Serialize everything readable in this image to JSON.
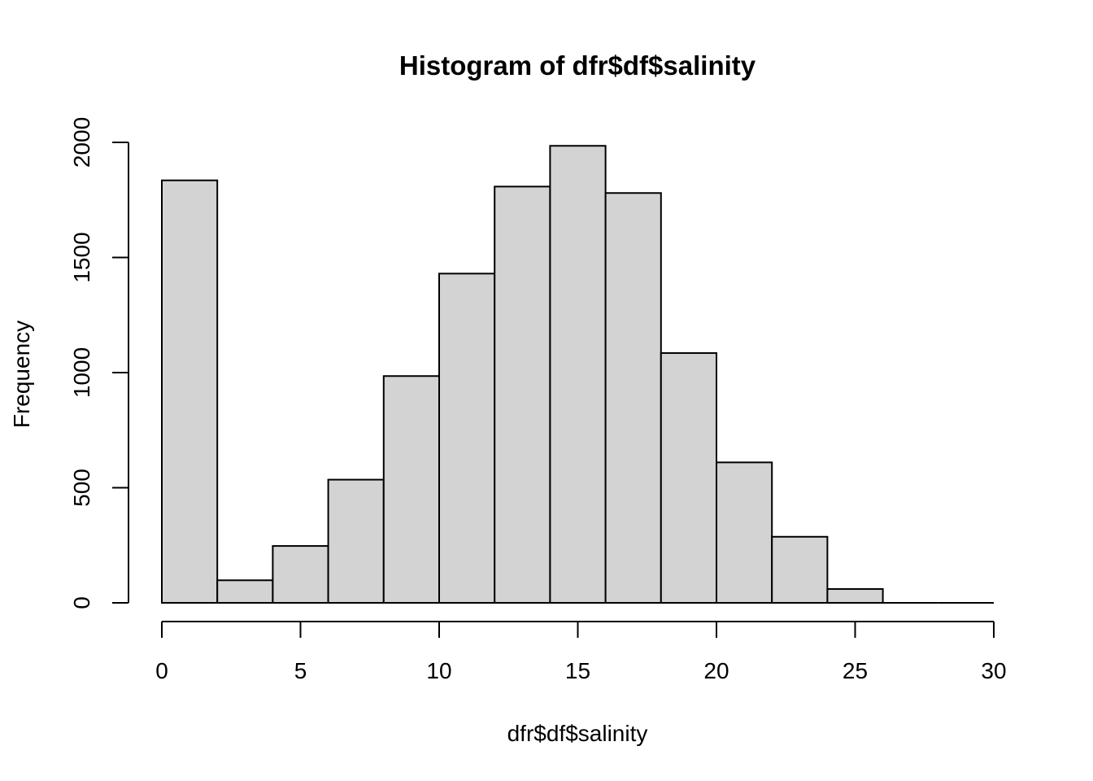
{
  "chart_data": {
    "type": "bar",
    "title": "Histogram of dfr$df$salinity",
    "xlabel": "dfr$df$salinity",
    "ylabel": "Frequency",
    "bins": [
      {
        "from": 0,
        "to": 2,
        "count": 1835
      },
      {
        "from": 2,
        "to": 4,
        "count": 98
      },
      {
        "from": 4,
        "to": 6,
        "count": 247
      },
      {
        "from": 6,
        "to": 8,
        "count": 535
      },
      {
        "from": 8,
        "to": 10,
        "count": 985
      },
      {
        "from": 10,
        "to": 12,
        "count": 1430
      },
      {
        "from": 12,
        "to": 14,
        "count": 1808
      },
      {
        "from": 14,
        "to": 16,
        "count": 1985
      },
      {
        "from": 16,
        "to": 18,
        "count": 1780
      },
      {
        "from": 18,
        "to": 20,
        "count": 1085
      },
      {
        "from": 20,
        "to": 22,
        "count": 610
      },
      {
        "from": 22,
        "to": 24,
        "count": 287
      },
      {
        "from": 24,
        "to": 26,
        "count": 60
      },
      {
        "from": 26,
        "to": 28,
        "count": 0
      },
      {
        "from": 28,
        "to": 30,
        "count": 0
      }
    ],
    "x_ticks": [
      "0",
      "5",
      "10",
      "15",
      "20",
      "25",
      "30"
    ],
    "y_ticks": [
      "0",
      "500",
      "1000",
      "1500",
      "2000"
    ],
    "xlim": [
      0,
      30
    ],
    "ylim": [
      0,
      2000
    ],
    "grid": false,
    "fill_color": "#d3d3d3",
    "edge_color": "#000000"
  }
}
